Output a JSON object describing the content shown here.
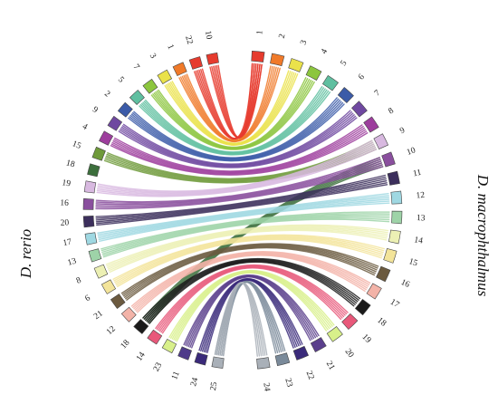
{
  "species": {
    "left": "D. rerio",
    "right": "D. macrophthalmus"
  },
  "right_chromosomes": [
    {
      "label": "1",
      "color": "#e63b2e"
    },
    {
      "label": "2",
      "color": "#f07a2a"
    },
    {
      "label": "3",
      "color": "#eae24a"
    },
    {
      "label": "4",
      "color": "#8cc63e"
    },
    {
      "label": "5",
      "color": "#5fbfa0"
    },
    {
      "label": "6",
      "color": "#3b5ba8"
    },
    {
      "label": "7",
      "color": "#6f48a0"
    },
    {
      "label": "8",
      "color": "#9d3e9d"
    },
    {
      "label": "9",
      "color": "#d8b9e0"
    },
    {
      "label": "10",
      "color": "#8a4f9e"
    },
    {
      "label": "11",
      "color": "#3c2f5c"
    },
    {
      "label": "12",
      "color": "#9fd8e2"
    },
    {
      "label": "13",
      "color": "#9ed3a8"
    },
    {
      "label": "14",
      "color": "#ecf0b4"
    },
    {
      "label": "15",
      "color": "#f3e49a"
    },
    {
      "label": "16",
      "color": "#6b5a3f"
    },
    {
      "label": "17",
      "color": "#f3b3a8"
    },
    {
      "label": "18",
      "color": "#1a1a1a"
    },
    {
      "label": "19",
      "color": "#e8587a"
    },
    {
      "label": "20",
      "color": "#d8f08a"
    },
    {
      "label": "21",
      "color": "#5a3f8c"
    },
    {
      "label": "22",
      "color": "#3a2a7a"
    },
    {
      "label": "23",
      "color": "#7a8a9a"
    },
    {
      "label": "24",
      "color": "#a9b0b8"
    }
  ],
  "left_chromosomes": [
    {
      "label": "25",
      "color": "#a9b0b8"
    },
    {
      "label": "24",
      "color": "#3a2a7a"
    },
    {
      "label": "11",
      "color": "#4e3a8a"
    },
    {
      "label": "23",
      "color": "#d8f08a"
    },
    {
      "label": "14",
      "color": "#e8587a"
    },
    {
      "label": "18",
      "color": "#1a1a1a"
    },
    {
      "label": "12",
      "color": "#f3b3a8"
    },
    {
      "label": "21",
      "color": "#6b5a3f"
    },
    {
      "label": "6",
      "color": "#f3e49a"
    },
    {
      "label": "8",
      "color": "#ecf0b4"
    },
    {
      "label": "13",
      "color": "#9ed3a8"
    },
    {
      "label": "17",
      "color": "#9fd8e2"
    },
    {
      "label": "20",
      "color": "#3c2f5c"
    },
    {
      "label": "16",
      "color": "#8a4f9e"
    },
    {
      "label": "19",
      "color": "#d8b9e0"
    },
    {
      "label": "18",
      "color": "#3c6f3c"
    },
    {
      "label": "15",
      "color": "#6f9a3a"
    },
    {
      "label": "4",
      "color": "#9d3e9d"
    },
    {
      "label": "9",
      "color": "#6f48a0"
    },
    {
      "label": "2",
      "color": "#3b5ba8"
    },
    {
      "label": "5",
      "color": "#5fbfa0"
    },
    {
      "label": "7",
      "color": "#8cc63e"
    },
    {
      "label": "3",
      "color": "#eae24a"
    },
    {
      "label": "1",
      "color": "#f07a2a"
    },
    {
      "label": "22",
      "color": "#e63b2e"
    },
    {
      "label": "10",
      "color": "#e63b2e"
    }
  ],
  "links": [
    {
      "left_chrom": "10",
      "right_chrom": "1",
      "color": "#e63b2e"
    },
    {
      "left_chrom": "22",
      "right_chrom": "1",
      "color": "#e63b2e"
    },
    {
      "left_chrom": "1",
      "right_chrom": "2",
      "color": "#f07a2a"
    },
    {
      "left_chrom": "3",
      "right_chrom": "3",
      "color": "#eae24a"
    },
    {
      "left_chrom": "7",
      "right_chrom": "4",
      "color": "#8cc63e"
    },
    {
      "left_chrom": "5",
      "right_chrom": "5",
      "color": "#5fbfa0"
    },
    {
      "left_chrom": "2",
      "right_chrom": "6",
      "color": "#3b5ba8"
    },
    {
      "left_chrom": "9",
      "right_chrom": "7",
      "color": "#6f48a0"
    },
    {
      "left_chrom": "4",
      "right_chrom": "8",
      "color": "#9d3e9d"
    },
    {
      "left_chrom": "15",
      "right_chrom": "9",
      "color": "#6f9a3a"
    },
    {
      "left_chrom": "18",
      "right_chrom": "10",
      "color": "#3c6f3c"
    },
    {
      "left_chrom": "19",
      "right_chrom": "9",
      "color": "#d8b9e0"
    },
    {
      "left_chrom": "16",
      "right_chrom": "10",
      "color": "#8a4f9e"
    },
    {
      "left_chrom": "20",
      "right_chrom": "11",
      "color": "#3c2f5c"
    },
    {
      "left_chrom": "17",
      "right_chrom": "12",
      "color": "#9fd8e2"
    },
    {
      "left_chrom": "13",
      "right_chrom": "13",
      "color": "#9ed3a8"
    },
    {
      "left_chrom": "8",
      "right_chrom": "14",
      "color": "#ecf0b4"
    },
    {
      "left_chrom": "6",
      "right_chrom": "15",
      "color": "#f3e49a"
    },
    {
      "left_chrom": "21",
      "right_chrom": "16",
      "color": "#6b5a3f"
    },
    {
      "left_chrom": "12",
      "right_chrom": "17",
      "color": "#f3b3a8"
    },
    {
      "left_chrom": "18",
      "right_chrom": "18",
      "color": "#1a1a1a"
    },
    {
      "left_chrom": "14",
      "right_chrom": "19",
      "color": "#e8587a"
    },
    {
      "left_chrom": "23",
      "right_chrom": "20",
      "color": "#d8f08a"
    },
    {
      "left_chrom": "11",
      "right_chrom": "21",
      "color": "#5a3f8c"
    },
    {
      "left_chrom": "24",
      "right_chrom": "22",
      "color": "#3a2a7a"
    },
    {
      "left_chrom": "25",
      "right_chrom": "23",
      "color": "#7a8a9a"
    },
    {
      "left_chrom": "25",
      "right_chrom": "24",
      "color": "#a9b0b8"
    }
  ]
}
